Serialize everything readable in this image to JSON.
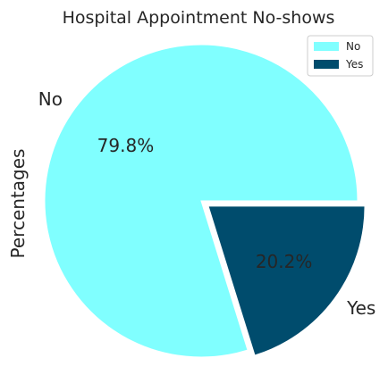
{
  "chart_data": {
    "type": "pie",
    "title": "Hospital Appointment No-shows",
    "ylabel": "Percentages",
    "legend_position": "top-right",
    "slices": [
      {
        "label": "No",
        "value": 79.8,
        "pct_label": "79.8%",
        "color": "#80ffff",
        "exploded": false
      },
      {
        "label": "Yes",
        "value": 20.2,
        "pct_label": "20.2%",
        "color": "#004c6d",
        "exploded": true
      }
    ]
  }
}
